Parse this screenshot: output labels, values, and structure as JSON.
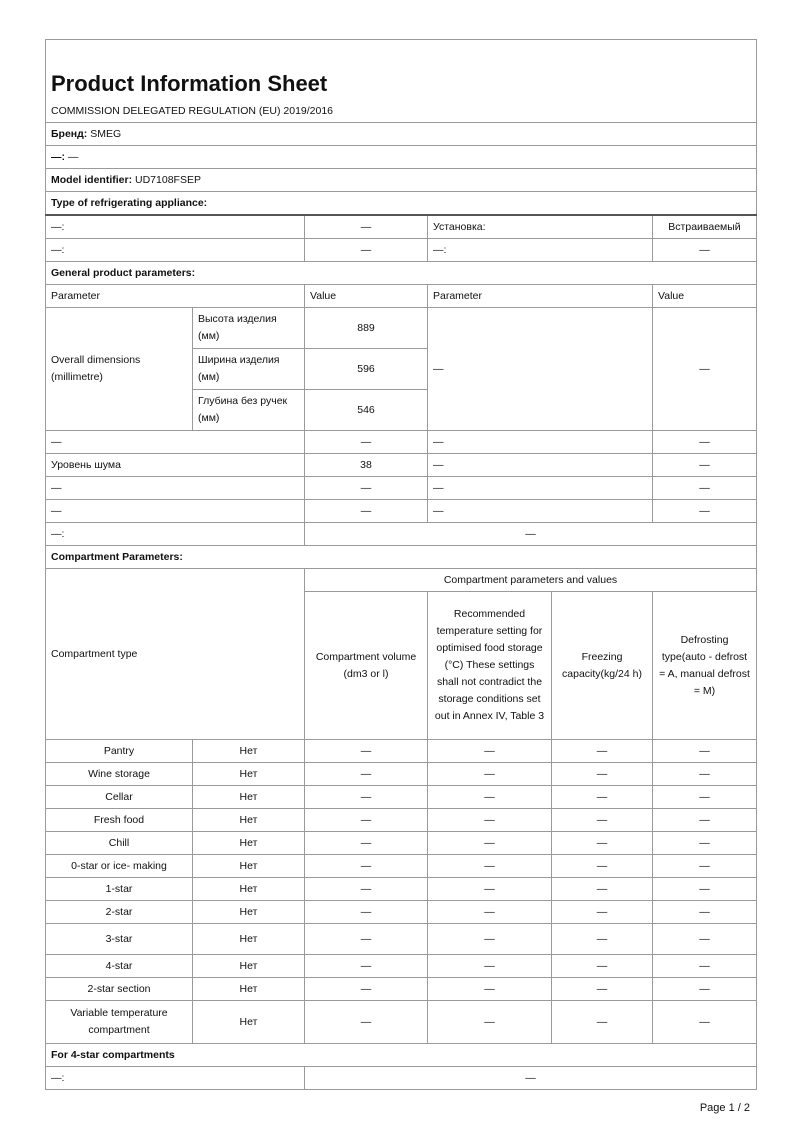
{
  "title": "Product Information Sheet",
  "regulation": "COMMISSION DELEGATED REGULATION (EU) 2019/2016",
  "brand": {
    "label": "Бренд:",
    "value": "SMEG"
  },
  "dash_line": {
    "label": "—:",
    "value": "—"
  },
  "model": {
    "label": "Model identifier:",
    "value": "UD7108FSEP"
  },
  "type_heading": "Type of refrigerating appliance:",
  "type_rows": [
    {
      "p1": "—:",
      "v1": "—",
      "p2": "Установка:",
      "v2": "Встраиваемый"
    },
    {
      "p1": "—:",
      "v1": "—",
      "p2": "—:",
      "v2": "—"
    }
  ],
  "general_heading": "General product parameters:",
  "general_header": {
    "p1": "Parameter",
    "v1": "Value",
    "p2": "Parameter",
    "v2": "Value"
  },
  "dimensions": {
    "label": "Overall dimensions (millimetre)",
    "items": [
      {
        "label": "Высота изделия (мм)",
        "value": "889"
      },
      {
        "label": "Ширина изделия (мм)",
        "value": "596"
      },
      {
        "label": "Глубина без ручек (мм)",
        "value": "546"
      }
    ],
    "p2": "—",
    "v2": "—"
  },
  "general_rows": [
    {
      "p1": "—",
      "v1": "—",
      "p2": "—",
      "v2": "—"
    },
    {
      "p1": "Уровень шума",
      "v1": "38",
      "p2": "—",
      "v2": "—"
    },
    {
      "p1": "—",
      "v1": "—",
      "p2": "—",
      "v2": "—"
    },
    {
      "p1": "—",
      "v1": "—",
      "p2": "—",
      "v2": "—"
    }
  ],
  "general_last": {
    "label": "—:",
    "value": "—"
  },
  "compartment_heading": "Compartment Parameters:",
  "compartment_header": {
    "type": "Compartment type",
    "group": "Compartment parameters and values",
    "volume": "Compartment volume (dm3 or l)",
    "temperature": "Recommended temperature setting for optimised food storage (°C) These settings shall not contradict the storage conditions set out in Annex IV, Table 3",
    "freezing": "Freezing capacity(kg/24 h)",
    "defrost": "Defrosting type(auto - defrost = A, manual defrost = M)"
  },
  "compartments": [
    {
      "name": "Pantry",
      "present": "Нет",
      "volume": "—",
      "temp": "—",
      "freezing": "—",
      "defrost": "—"
    },
    {
      "name": "Wine storage",
      "present": "Нет",
      "volume": "—",
      "temp": "—",
      "freezing": "—",
      "defrost": "—"
    },
    {
      "name": "Cellar",
      "present": "Нет",
      "volume": "—",
      "temp": "—",
      "freezing": "—",
      "defrost": "—"
    },
    {
      "name": "Fresh food",
      "present": "Нет",
      "volume": "—",
      "temp": "—",
      "freezing": "—",
      "defrost": "—"
    },
    {
      "name": "Chill",
      "present": "Нет",
      "volume": "—",
      "temp": "—",
      "freezing": "—",
      "defrost": "—"
    },
    {
      "name": "0-star or ice- making",
      "present": "Нет",
      "volume": "—",
      "temp": "—",
      "freezing": "—",
      "defrost": "—"
    },
    {
      "name": "1-star",
      "present": "Нет",
      "volume": "—",
      "temp": "—",
      "freezing": "—",
      "defrost": "—"
    },
    {
      "name": "2-star",
      "present": "Нет",
      "volume": "—",
      "temp": "—",
      "freezing": "—",
      "defrost": "—"
    },
    {
      "name": "3-star",
      "present": "Нет",
      "volume": "—",
      "temp": "—",
      "freezing": "—",
      "defrost": "—"
    },
    {
      "name": "4-star",
      "present": "Нет",
      "volume": "—",
      "temp": "—",
      "freezing": "—",
      "defrost": "—"
    },
    {
      "name": "2-star section",
      "present": "Нет",
      "volume": "—",
      "temp": "—",
      "freezing": "—",
      "defrost": "—"
    },
    {
      "name": "Variable temperature compartment",
      "present": "Нет",
      "volume": "—",
      "temp": "—",
      "freezing": "—",
      "defrost": "—"
    }
  ],
  "four_star_heading": "For 4-star compartments",
  "four_star_row": {
    "label": "—:",
    "value": "—"
  },
  "page": "Page 1 / 2"
}
